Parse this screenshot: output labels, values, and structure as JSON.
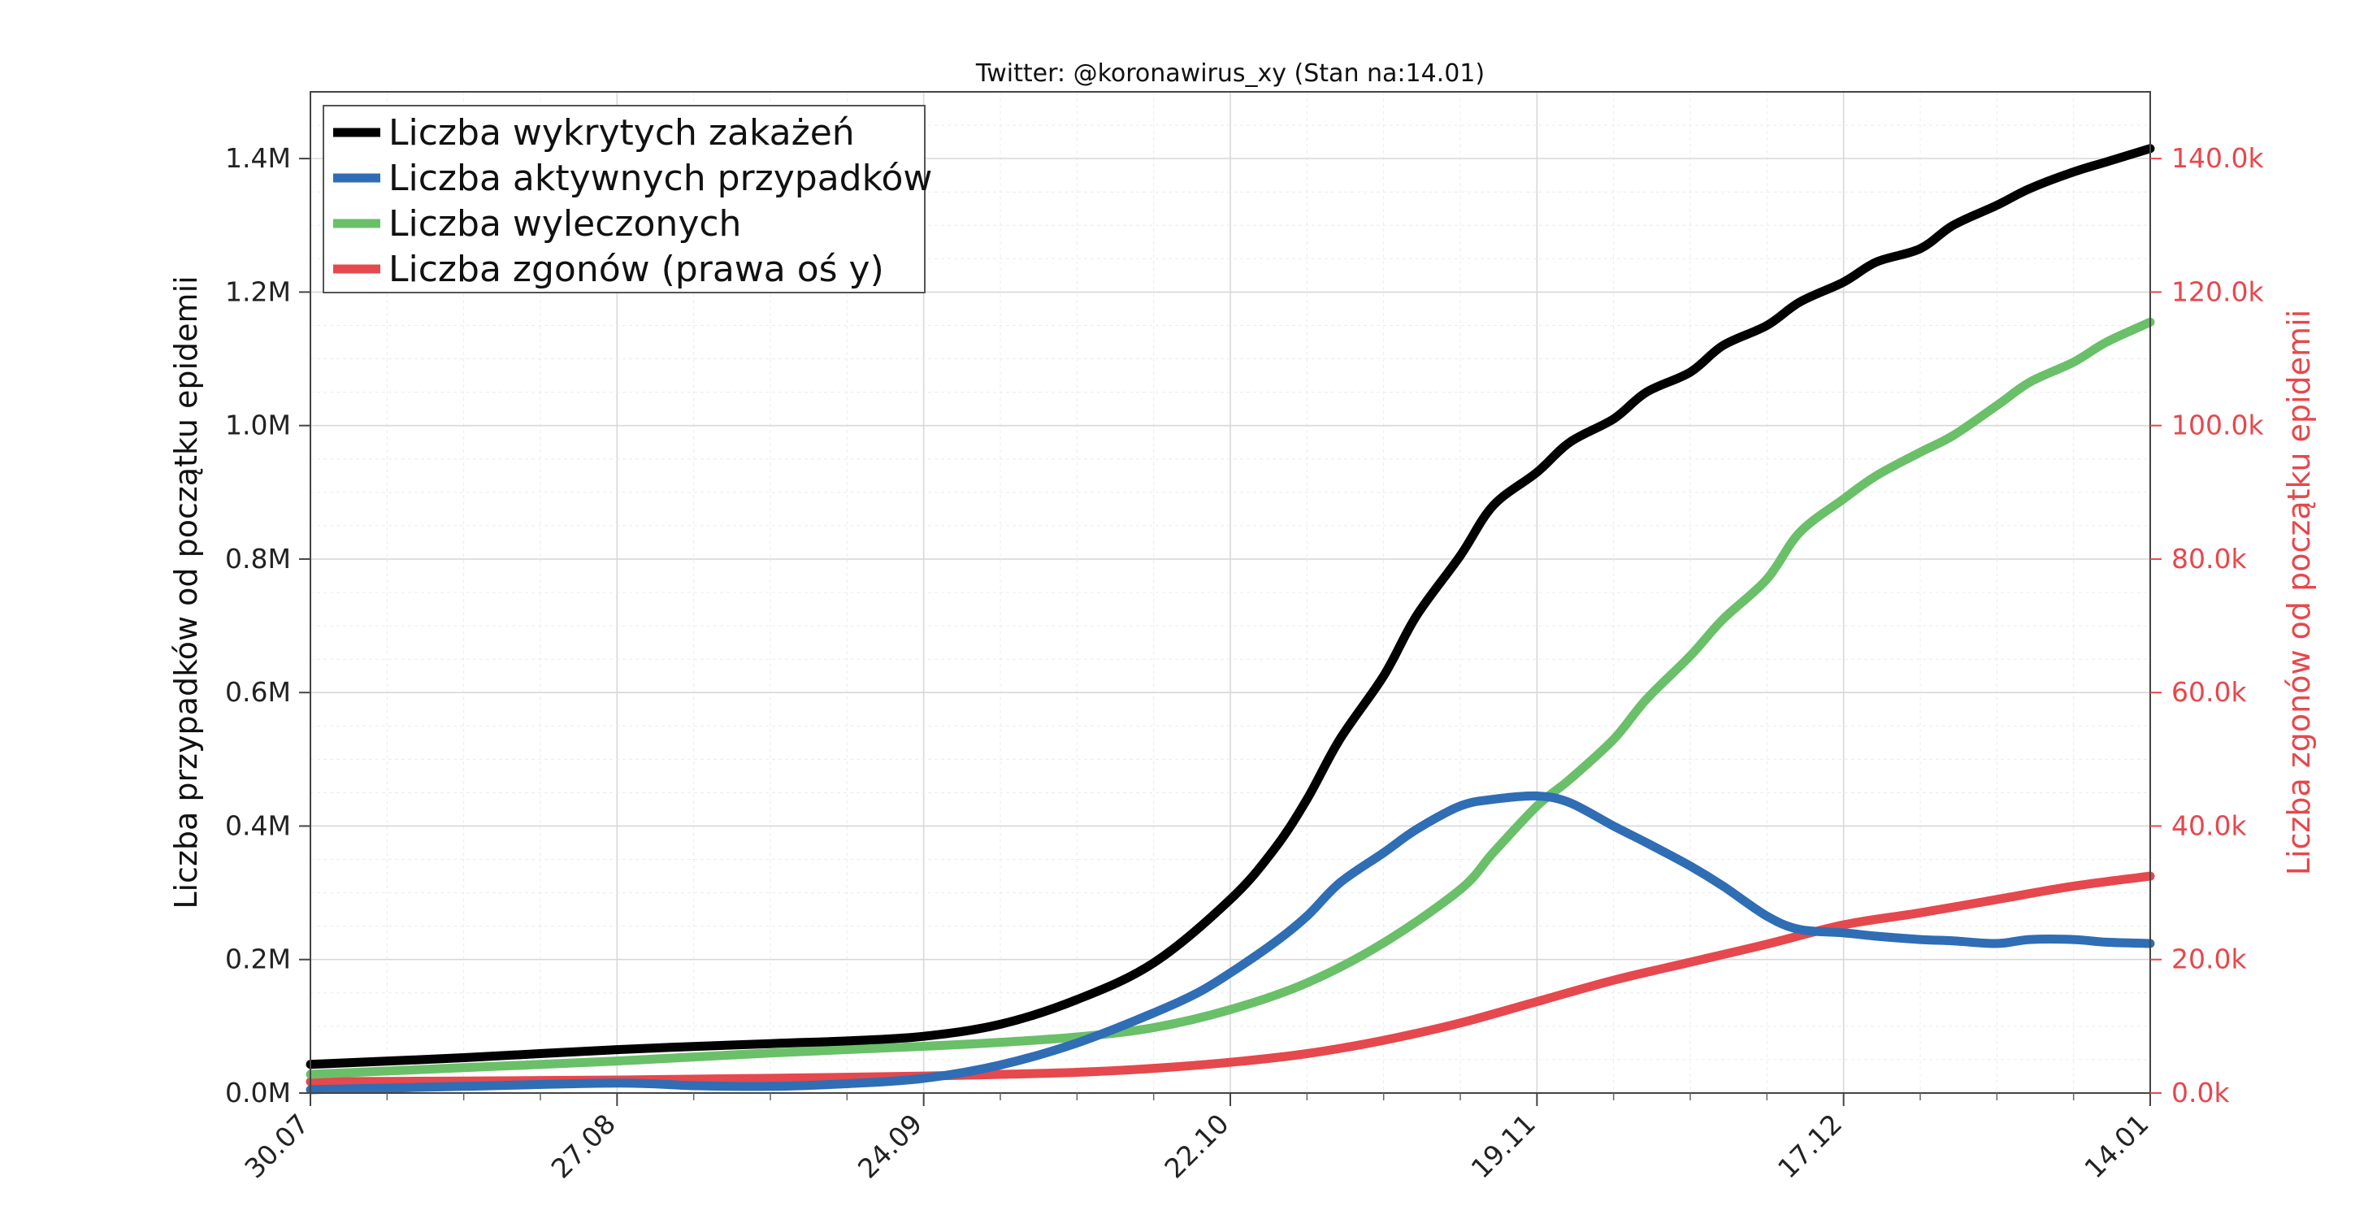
{
  "chart_data": {
    "type": "line",
    "title": "Twitter: @koronawirus_xy (Stan na:14.01)",
    "ylabel": "Liczba przypadków od początku epidemii",
    "ylabel_right": "Liczba zgonów od początku epidemii",
    "x_tick_labels": [
      "30.07",
      "27.08",
      "24.09",
      "22.10",
      "19.11",
      "17.12",
      "14.01"
    ],
    "x_range_days": [
      0,
      168
    ],
    "ylim": [
      0,
      1500000
    ],
    "ylim_right": [
      0,
      150000
    ],
    "y_ticks": [
      0,
      200000,
      400000,
      600000,
      800000,
      1000000,
      1200000,
      1400000
    ],
    "y_tick_labels": [
      "0.0M",
      "0.2M",
      "0.4M",
      "0.6M",
      "0.8M",
      "1.0M",
      "1.2M",
      "1.4M"
    ],
    "y_ticks_right": [
      0,
      20000,
      40000,
      60000,
      80000,
      100000,
      120000,
      140000
    ],
    "y_tick_labels_right": [
      "0.0k",
      "20.0k",
      "40.0k",
      "60.0k",
      "80.0k",
      "100.0k",
      "120.0k",
      "140.0k"
    ],
    "grid": true,
    "legend_position": "top-left",
    "series": [
      {
        "name": "Liczba wykrytych zakażeń",
        "color": "#000000",
        "axis": "left",
        "x": [
          0,
          14,
          28,
          42,
          49,
          56,
          63,
          70,
          77,
          84,
          88,
          91,
          94,
          98,
          101,
          105,
          108,
          112,
          115,
          119,
          122,
          126,
          129,
          133,
          136,
          140,
          143,
          147,
          150,
          154,
          157,
          161,
          164,
          168
        ],
        "values": [
          43000,
          53000,
          65000,
          74000,
          78000,
          85000,
          103000,
          140000,
          195000,
          290000,
          365000,
          440000,
          530000,
          625000,
          715000,
          805000,
          880000,
          930000,
          975000,
          1010000,
          1050000,
          1080000,
          1120000,
          1150000,
          1185000,
          1215000,
          1245000,
          1265000,
          1300000,
          1330000,
          1355000,
          1380000,
          1395000,
          1415000
        ]
      },
      {
        "name": "Liczba aktywnych przypadków",
        "color": "#2f6db5",
        "axis": "left",
        "x": [
          0,
          14,
          28,
          35,
          42,
          49,
          56,
          63,
          70,
          77,
          81,
          84,
          88,
          91,
          94,
          98,
          101,
          105,
          108,
          112,
          115,
          119,
          122,
          126,
          129,
          133,
          136,
          140,
          143,
          147,
          150,
          154,
          157,
          161,
          164,
          168
        ],
        "values": [
          5000,
          10000,
          15000,
          11000,
          10000,
          14000,
          22000,
          42000,
          75000,
          120000,
          150000,
          180000,
          225000,
          265000,
          315000,
          360000,
          395000,
          430000,
          440000,
          445000,
          435000,
          400000,
          375000,
          340000,
          310000,
          265000,
          245000,
          240000,
          235000,
          230000,
          228000,
          224000,
          230000,
          230000,
          226000,
          224000
        ]
      },
      {
        "name": "Liczba wyleczonych",
        "color": "#6abf69",
        "axis": "left",
        "x": [
          0,
          14,
          28,
          42,
          56,
          63,
          70,
          77,
          84,
          91,
          98,
          105,
          108,
          112,
          115,
          119,
          122,
          126,
          129,
          133,
          136,
          140,
          143,
          147,
          150,
          154,
          157,
          161,
          164,
          168
        ],
        "values": [
          28000,
          38000,
          48000,
          60000,
          70000,
          76000,
          84000,
          98000,
          125000,
          165000,
          225000,
          305000,
          360000,
          430000,
          470000,
          530000,
          590000,
          655000,
          710000,
          770000,
          840000,
          890000,
          925000,
          960000,
          985000,
          1030000,
          1065000,
          1095000,
          1125000,
          1155000
        ]
      },
      {
        "name": "Liczba zgonów (prawa oś y)",
        "color": "#e5484d",
        "axis": "right",
        "x": [
          0,
          14,
          28,
          42,
          56,
          63,
          70,
          77,
          84,
          91,
          98,
          105,
          112,
          119,
          126,
          133,
          140,
          147,
          154,
          161,
          168
        ],
        "values": [
          1700,
          1800,
          1950,
          2200,
          2550,
          2800,
          3100,
          3700,
          4600,
          5900,
          7900,
          10500,
          13700,
          16900,
          19600,
          22300,
          25200,
          27000,
          29000,
          31000,
          32500
        ]
      }
    ]
  }
}
